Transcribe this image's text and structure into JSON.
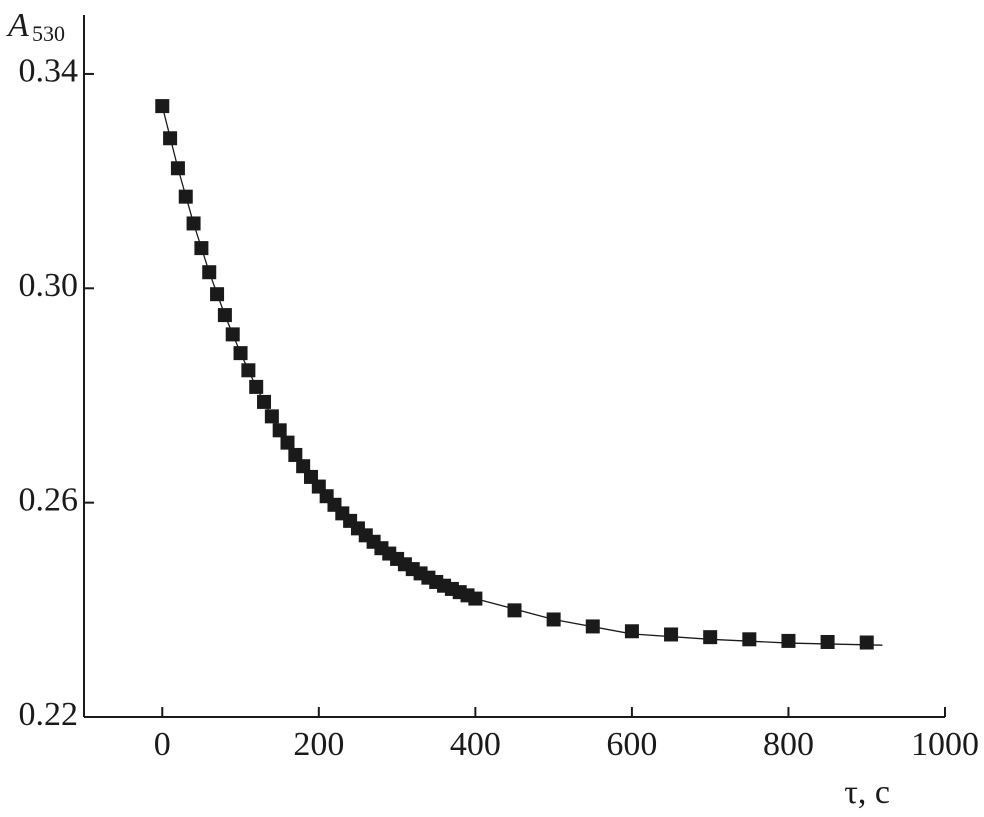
{
  "chart_data": {
    "type": "scatter",
    "ylabel": {
      "main": "A",
      "sub": "530"
    },
    "xlabel": "τ, c",
    "xlim": [
      -100,
      1000
    ],
    "xticks": [
      0,
      200,
      400,
      600,
      800,
      1000
    ],
    "ylim": [
      0.22,
      0.351
    ],
    "yticks": [
      0.34,
      {
        "value": 0.3,
        "label": "0.30"
      },
      0.26,
      0.22
    ],
    "series": [
      {
        "type": "scatter",
        "color": "#1a1a1a",
        "x": [
          0,
          10,
          20,
          30,
          40,
          50,
          60,
          70,
          80,
          90,
          100,
          110,
          120,
          130,
          140,
          150,
          160,
          170,
          180,
          190,
          200,
          210,
          220,
          230,
          240,
          250,
          260,
          270,
          280,
          290,
          300,
          310,
          320,
          330,
          340,
          350,
          360,
          370,
          380,
          390,
          400,
          450,
          500,
          550,
          600,
          650,
          700,
          750,
          800,
          850,
          900
        ],
        "values": [
          0.334,
          0.328,
          0.3224,
          0.3171,
          0.3121,
          0.3075,
          0.303,
          0.2989,
          0.295,
          0.2914,
          0.2879,
          0.2847,
          0.2816,
          0.2788,
          0.2761,
          0.2735,
          0.2712,
          0.2689,
          0.2668,
          0.2648,
          0.263,
          0.2612,
          0.2596,
          0.258,
          0.2566,
          0.2552,
          0.2539,
          0.2527,
          0.2515,
          0.2505,
          0.2495,
          0.2485,
          0.2476,
          0.2468,
          0.246,
          0.2452,
          0.2445,
          0.2439,
          0.2433,
          0.2427,
          0.2421,
          0.2399,
          0.2382,
          0.2369,
          0.236,
          0.2354,
          0.2349,
          0.2345,
          0.2342,
          0.234,
          0.2339
        ]
      },
      {
        "type": "line",
        "color": "#1a1a1a",
        "x": [
          0,
          20,
          40,
          60,
          80,
          100,
          120,
          140,
          160,
          180,
          200,
          220,
          240,
          260,
          280,
          300,
          320,
          340,
          360,
          380,
          400,
          500,
          600,
          700,
          800,
          920
        ],
        "values": [
          0.334,
          0.3224,
          0.3121,
          0.303,
          0.295,
          0.2879,
          0.2816,
          0.2761,
          0.2712,
          0.2668,
          0.263,
          0.2596,
          0.2566,
          0.2539,
          0.2515,
          0.2495,
          0.2476,
          0.246,
          0.2445,
          0.2433,
          0.2421,
          0.2382,
          0.2355,
          0.2345,
          0.2338,
          0.2334
        ]
      }
    ]
  }
}
